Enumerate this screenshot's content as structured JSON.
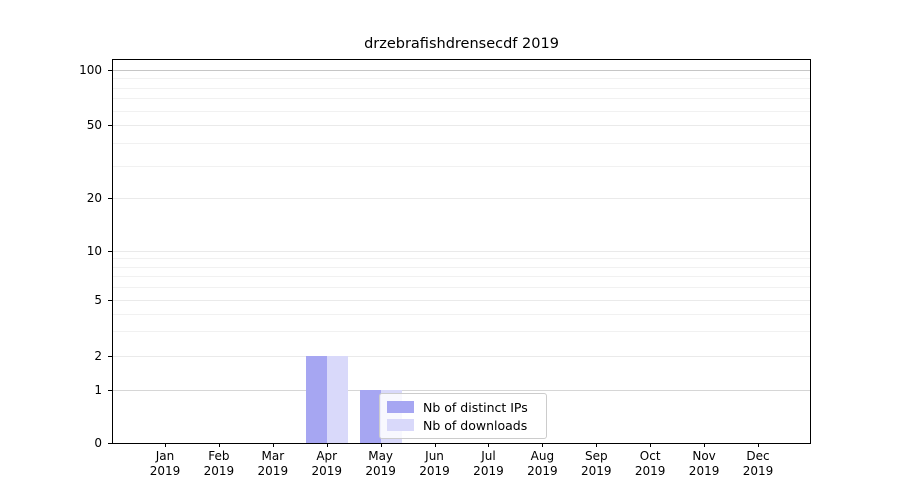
{
  "chart_data": {
    "type": "bar",
    "title": "drzebrafishdrensecdf 2019",
    "categories": [
      "Jan",
      "Feb",
      "Mar",
      "Apr",
      "May",
      "Jun",
      "Jul",
      "Aug",
      "Sep",
      "Oct",
      "Nov",
      "Dec"
    ],
    "category_year": "2019",
    "series": [
      {
        "name": "Nb of distinct IPs",
        "color": "#a6a6f2",
        "values": [
          0,
          0,
          0,
          2,
          1,
          0,
          0,
          0,
          0,
          0,
          0,
          0
        ]
      },
      {
        "name": "Nb of downloads",
        "color": "#d9d9fa",
        "values": [
          0,
          0,
          0,
          2,
          1,
          0,
          0,
          0,
          0,
          0,
          0,
          0
        ]
      }
    ],
    "xlabel": "",
    "ylabel": "",
    "yscale": "symlog",
    "yticks": [
      0,
      1,
      2,
      5,
      10,
      20,
      50,
      100
    ],
    "yticks_minor": [
      3,
      4,
      6,
      7,
      8,
      9,
      30,
      40,
      60,
      70,
      80,
      90
    ],
    "ylim": [
      0,
      113
    ],
    "grid": true,
    "legend_position": "lower center"
  }
}
